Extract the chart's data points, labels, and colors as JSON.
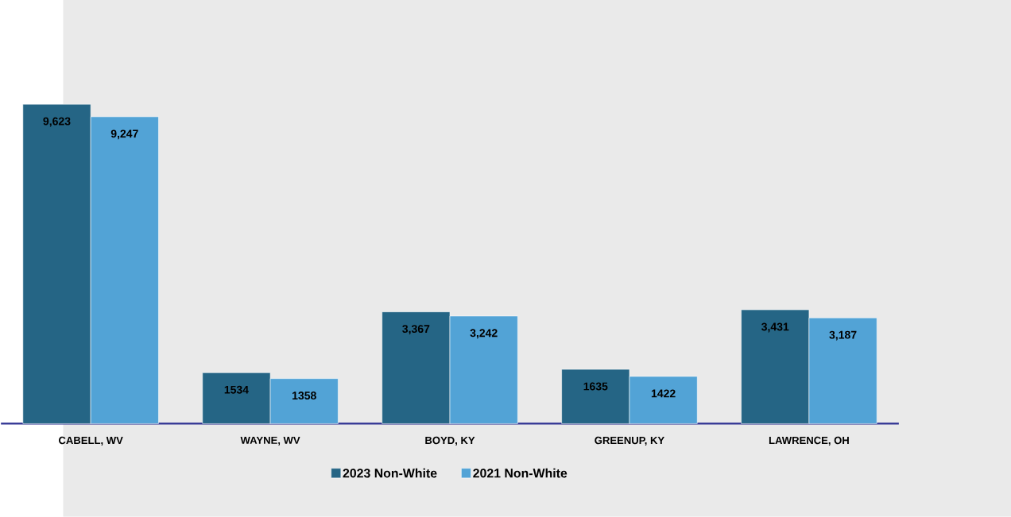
{
  "chart_data": {
    "type": "bar",
    "categories": [
      "CABELL, WV",
      "WAYNE, WV",
      "BOYD, KY",
      "GREENUP, KY",
      "LAWRENCE, OH"
    ],
    "series": [
      {
        "name": "2023 Non-White",
        "color": "#256585",
        "values": [
          9623,
          1534,
          3367,
          1635,
          3431
        ],
        "value_labels": [
          "9,623",
          "1534",
          "3,367",
          "1635",
          "3,431"
        ]
      },
      {
        "name": "2021 Non-White",
        "color": "#52a3d6",
        "values": [
          9247,
          1358,
          3242,
          1422,
          3187
        ],
        "value_labels": [
          "9,247",
          "1358",
          "3,242",
          "1422",
          "3,187"
        ]
      }
    ],
    "legend": "bottom"
  }
}
